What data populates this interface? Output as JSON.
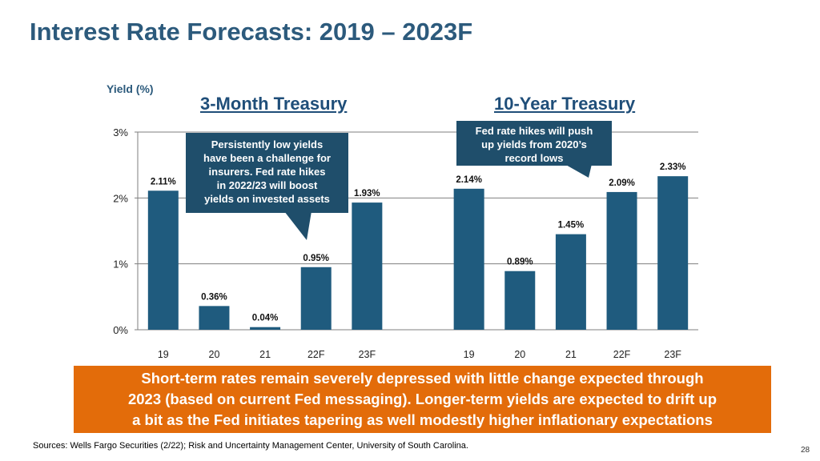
{
  "title": "Interest Rate Forecasts: 2019 – 2023F",
  "colors": {
    "bar": "#1f5b7e",
    "title": "#2c5a7c",
    "callout": "#1f4e6b",
    "summary": "#e36c0a"
  },
  "chart_data": {
    "type": "bar",
    "ylabel": "Yield (%)",
    "ylim": [
      0,
      3
    ],
    "yticks": [
      "0%",
      "1%",
      "2%",
      "3%"
    ],
    "groups": [
      {
        "title": "3-Month Treasury",
        "categories": [
          "19",
          "20",
          "21",
          "22F",
          "23F"
        ],
        "values": [
          2.11,
          0.36,
          0.04,
          0.95,
          1.93
        ],
        "labels": [
          "2.11%",
          "0.36%",
          "0.04%",
          "0.95%",
          "1.93%"
        ]
      },
      {
        "title": "10-Year Treasury",
        "categories": [
          "19",
          "20",
          "21",
          "22F",
          "23F"
        ],
        "values": [
          2.14,
          0.89,
          1.45,
          2.09,
          2.33
        ],
        "labels": [
          "2.14%",
          "0.89%",
          "1.45%",
          "2.09%",
          "2.33%"
        ]
      }
    ],
    "annotations": [
      "Persistently low yields have been a challenge for insurers.  Fed rate hikes in 2022/23 will boost yields on invested assets",
      "Fed rate hikes will push up yields from 2020’s record lows"
    ]
  },
  "callouts": {
    "left": [
      "Persistently low yields",
      "have been a challenge for",
      "insurers.  Fed rate hikes",
      "in 2022/23 will boost",
      "yields on invested assets"
    ],
    "right": [
      "Fed rate hikes will push",
      "up yields from 2020’s",
      "record lows"
    ]
  },
  "summary": [
    "Short-term rates remain severely depressed with little change expected through",
    "2023 (based on current Fed messaging).  Longer-term yields are expected to drift up",
    "a bit as the Fed initiates tapering as well modestly higher inflationary expectations"
  ],
  "source": "Sources: Wells Fargo Securities (2/22); Risk and Uncertainty Management Center, University of South Carolina.",
  "page_number": "28"
}
